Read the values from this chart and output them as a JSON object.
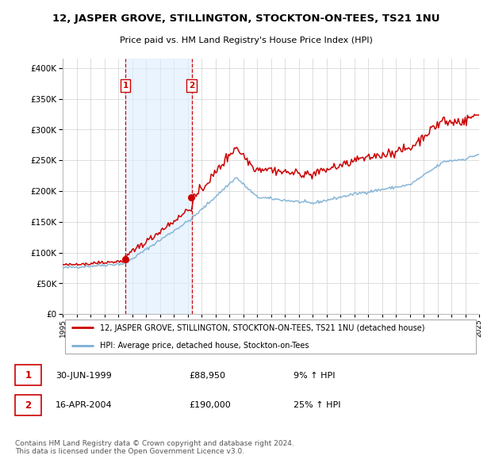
{
  "title": "12, JASPER GROVE, STILLINGTON, STOCKTON-ON-TEES, TS21 1NU",
  "subtitle": "Price paid vs. HM Land Registry's House Price Index (HPI)",
  "ytick_values": [
    0,
    50000,
    100000,
    150000,
    200000,
    250000,
    300000,
    350000,
    400000
  ],
  "ylim": [
    0,
    415000
  ],
  "background": "#ffffff",
  "grid_color": "#d8d8d8",
  "hpi_color": "#7bafd4",
  "hpi_fill": "#cfe0f0",
  "price_color": "#cc0000",
  "vline_color": "#cc0000",
  "shade_color": "#ddeeff",
  "sale1": {
    "date_num": 1999.49,
    "price": 88950,
    "label": "1"
  },
  "sale2": {
    "date_num": 2004.29,
    "price": 190000,
    "label": "2"
  },
  "legend_text1": "12, JASPER GROVE, STILLINGTON, STOCKTON-ON-TEES, TS21 1NU (detached house)",
  "legend_text2": "HPI: Average price, detached house, Stockton-on-Tees",
  "footer1": "Contains HM Land Registry data © Crown copyright and database right 2024.",
  "footer2": "This data is licensed under the Open Government Licence v3.0.",
  "table_row1": [
    "1",
    "30-JUN-1999",
    "£88,950",
    "9% ↑ HPI"
  ],
  "table_row2": [
    "2",
    "16-APR-2004",
    "£190,000",
    "25% ↑ HPI"
  ]
}
